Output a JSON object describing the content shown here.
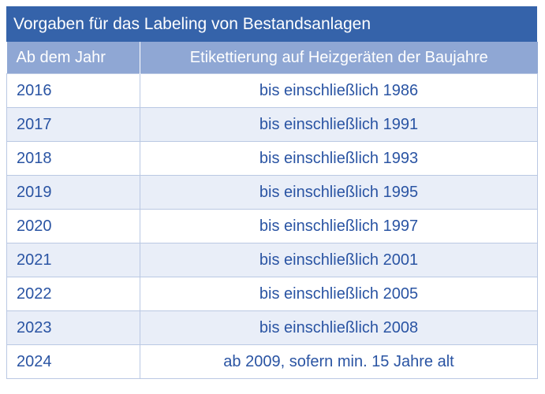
{
  "title": "Vorgaben für das Labeling von Bestandsanlagen",
  "columns": {
    "year": "Ab dem Jahr",
    "rule": "Etikettierung auf Heizgeräten der Baujahre"
  },
  "rows": [
    {
      "year": "2016",
      "rule": "bis einschließlich 1986"
    },
    {
      "year": "2017",
      "rule": "bis einschließlich 1991"
    },
    {
      "year": "2018",
      "rule": "bis einschließlich 1993"
    },
    {
      "year": "2019",
      "rule": "bis einschließlich 1995"
    },
    {
      "year": "2020",
      "rule": "bis einschließlich 1997"
    },
    {
      "year": "2021",
      "rule": "bis einschließlich 2001"
    },
    {
      "year": "2022",
      "rule": "bis einschließlich 2005"
    },
    {
      "year": "2023",
      "rule": "bis einschließlich 2008"
    },
    {
      "year": "2024",
      "rule": "ab 2009, sofern min. 15 Jahre alt"
    }
  ],
  "colors": {
    "title_background": "#3563aa",
    "header_background": "#8fa7d4",
    "row_alt_background": "#e9eef8",
    "text": "#2a54a3"
  }
}
